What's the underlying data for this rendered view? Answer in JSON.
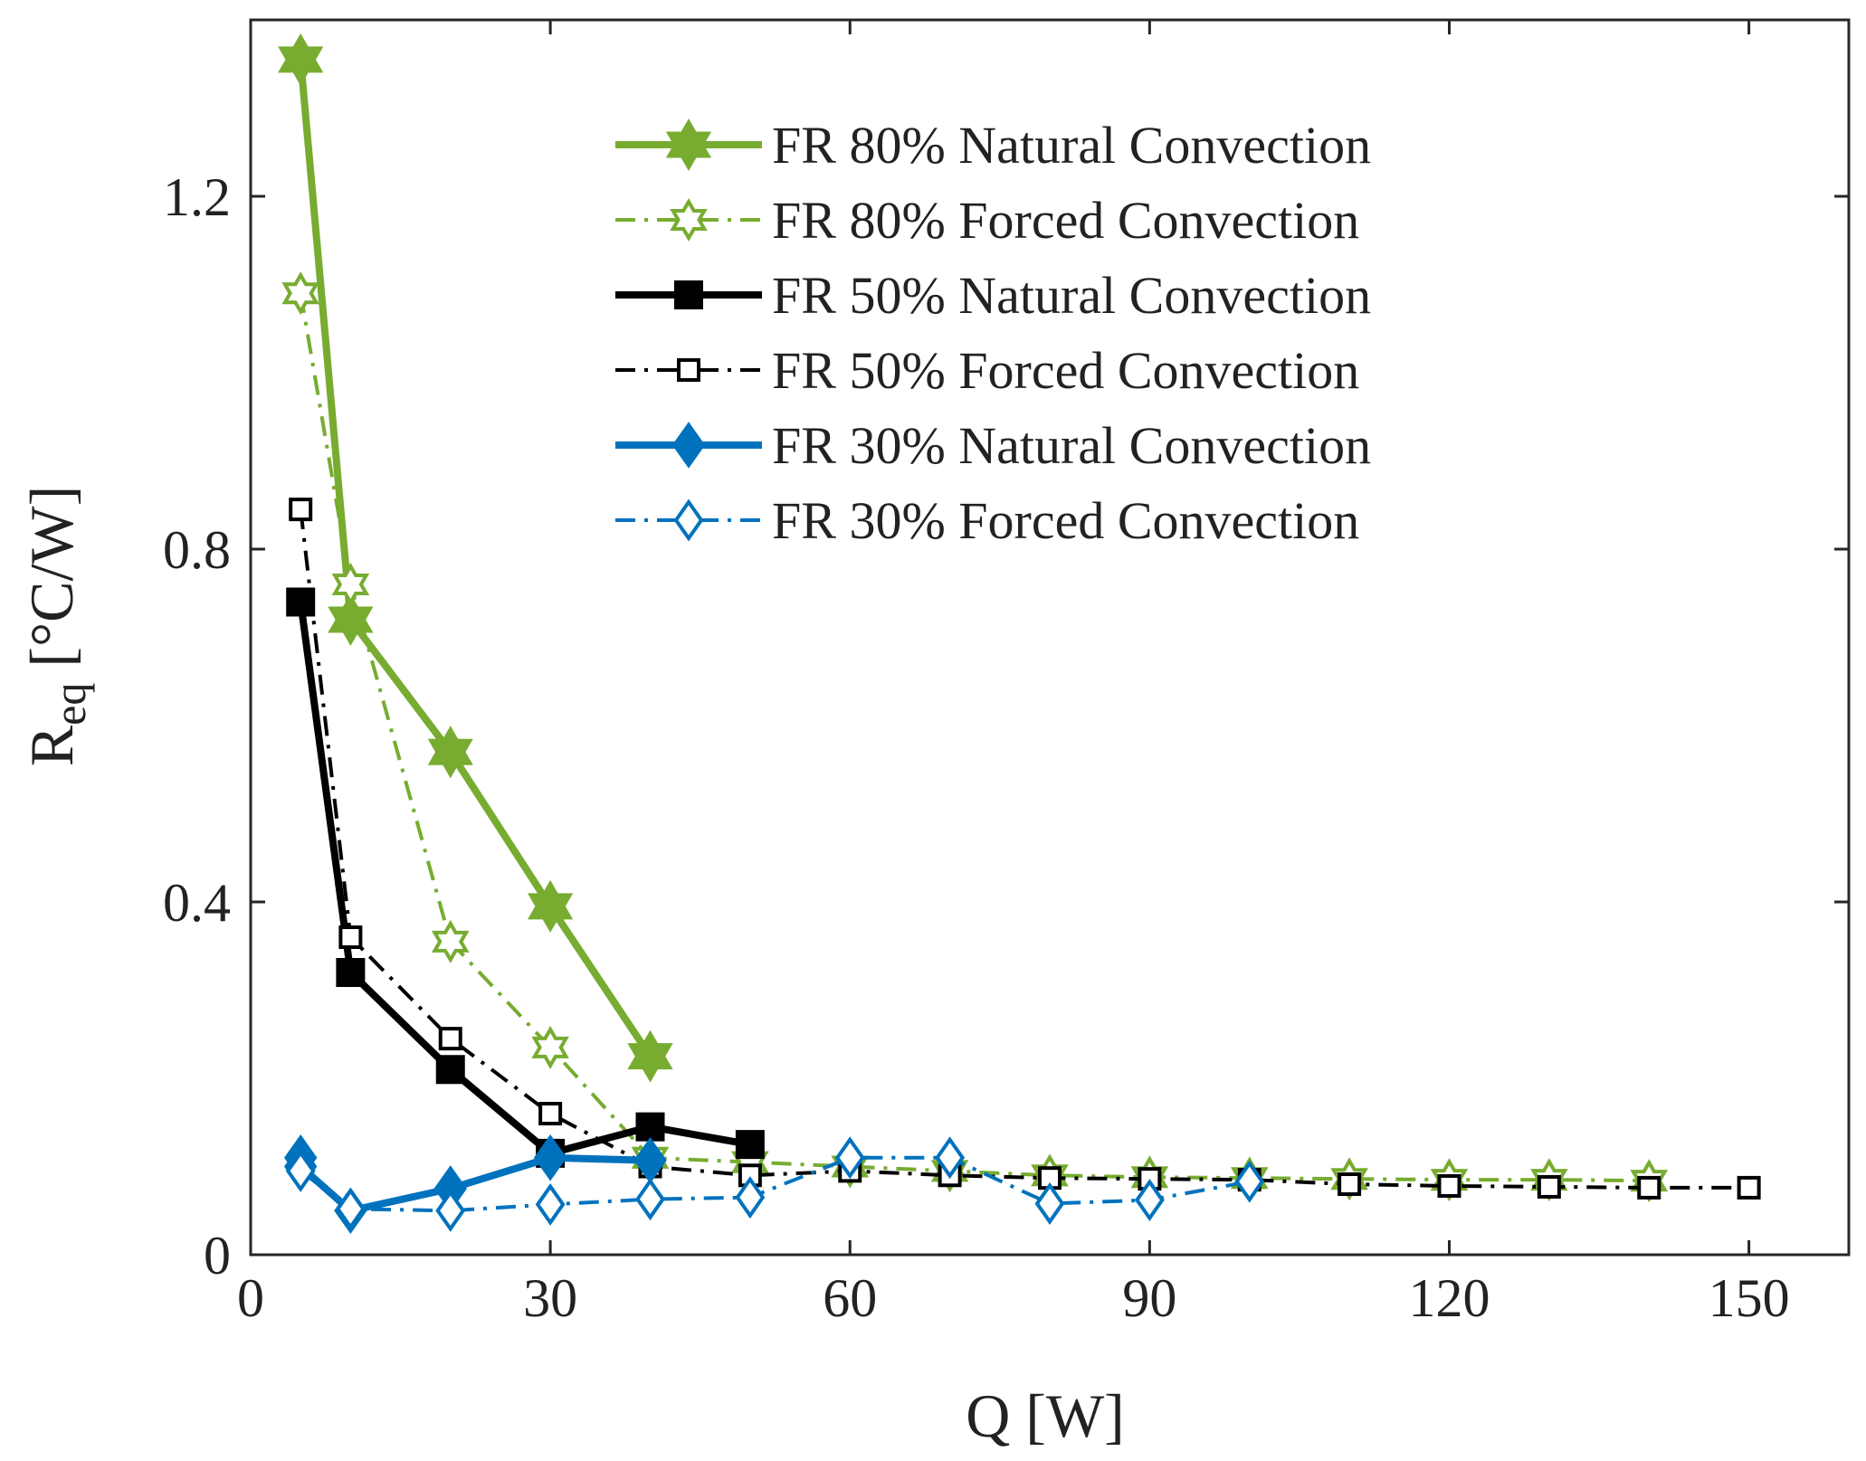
{
  "colors": {
    "green": "#77ac30",
    "black": "#000000",
    "blue": "#0072bd",
    "axis": "#262626"
  },
  "chart_data": {
    "type": "line",
    "title": "",
    "xlabel": "Q [W]",
    "ylabel": "R",
    "ylabel_subscript": "eq",
    "ylabel_units": " [°C/W]",
    "xlim": [
      0,
      160
    ],
    "ylim": [
      0,
      1.4
    ],
    "xticks": [
      0,
      30,
      60,
      90,
      120,
      150
    ],
    "yticks": [
      0,
      0.4,
      0.8,
      1.2
    ],
    "xtick_labels": [
      "0",
      "30",
      "60",
      "90",
      "120",
      "150"
    ],
    "ytick_labels": [
      "0",
      "0.4",
      "0.8",
      "1.2"
    ],
    "grid": false,
    "legend_position": "top-right",
    "series": [
      {
        "name": "FR 80% Natural Convection",
        "color_key": "green",
        "line": "solid",
        "marker": "hexagram",
        "filled": true,
        "x": [
          5,
          10,
          20,
          30,
          40
        ],
        "y": [
          1.355,
          0.72,
          0.57,
          0.395,
          0.225
        ]
      },
      {
        "name": "FR 80% Forced Convection",
        "color_key": "green",
        "line": "dashdot",
        "marker": "hexagram",
        "filled": false,
        "x": [
          5,
          10,
          20,
          30,
          40,
          50,
          60,
          70,
          80,
          90,
          100,
          110,
          120,
          130,
          140
        ],
        "y": [
          1.09,
          0.76,
          0.355,
          0.235,
          0.11,
          0.105,
          0.1,
          0.095,
          0.09,
          0.088,
          0.087,
          0.086,
          0.085,
          0.085,
          0.084
        ]
      },
      {
        "name": "FR 50% Natural Convection",
        "color_key": "black",
        "line": "solid",
        "marker": "square",
        "filled": true,
        "x": [
          5,
          10,
          20,
          30,
          40,
          50
        ],
        "y": [
          0.74,
          0.32,
          0.21,
          0.115,
          0.145,
          0.125
        ]
      },
      {
        "name": "FR 50% Forced Convection",
        "color_key": "black",
        "line": "dashdot",
        "marker": "square",
        "filled": false,
        "x": [
          5,
          10,
          20,
          30,
          40,
          50,
          60,
          70,
          80,
          90,
          100,
          110,
          120,
          130,
          140,
          150
        ],
        "y": [
          0.845,
          0.36,
          0.245,
          0.16,
          0.1,
          0.09,
          0.095,
          0.09,
          0.087,
          0.086,
          0.085,
          0.08,
          0.078,
          0.077,
          0.076,
          0.076
        ]
      },
      {
        "name": "FR 30% Natural Convection",
        "color_key": "blue",
        "line": "solid",
        "marker": "diamond",
        "filled": true,
        "x": [
          5,
          5,
          10,
          20,
          30,
          40
        ],
        "y": [
          0.11,
          0.1,
          0.05,
          0.075,
          0.11,
          0.107
        ]
      },
      {
        "name": "FR 30% Forced Convection",
        "color_key": "blue",
        "line": "dashdot",
        "marker": "diamond",
        "filled": false,
        "x": [
          5,
          10,
          20,
          30,
          40,
          50,
          60,
          70,
          80,
          90,
          100
        ],
        "y": [
          0.095,
          0.052,
          0.05,
          0.057,
          0.063,
          0.065,
          0.11,
          0.11,
          0.058,
          0.062,
          0.083
        ]
      }
    ]
  }
}
